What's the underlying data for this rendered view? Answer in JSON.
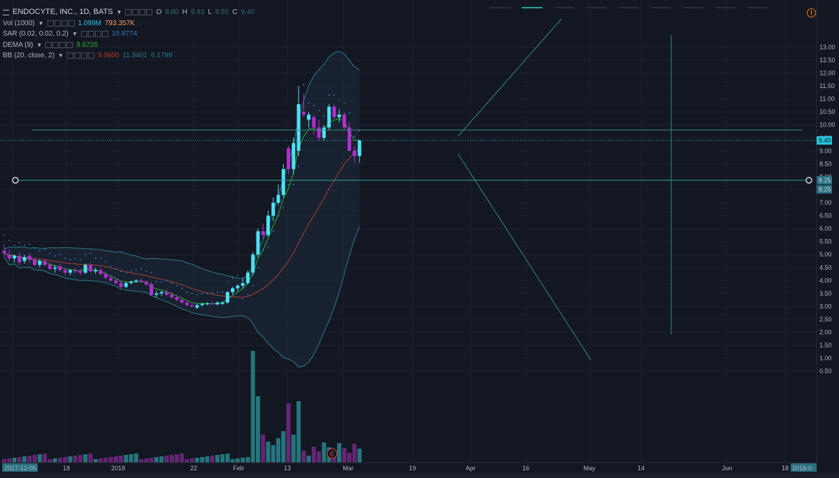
{
  "header": {
    "symbol": "ENDOCYTE, INC., 1D, BATS",
    "ohlc": {
      "o_label": "O",
      "o": "8.80",
      "h_label": "H",
      "h": "9.43",
      "l_label": "L",
      "l": "8.55",
      "c_label": "C",
      "c": "9.40"
    }
  },
  "indicators": [
    {
      "label": "Vol (1000)",
      "values": [
        {
          "v": "1.099M",
          "color": "#26c6da"
        },
        {
          "v": "793.357K",
          "color": "#ff9e6b"
        }
      ]
    },
    {
      "label": "SAR (0.02, 0.02, 0.2)",
      "values": [
        {
          "v": "10.8774",
          "color": "#2f7bbf"
        }
      ]
    },
    {
      "label": "DEMA (9)",
      "values": [
        {
          "v": "9.6726",
          "color": "#2eae34"
        }
      ]
    },
    {
      "label": "BB (20, close, 2)",
      "values": [
        {
          "v": "9.0600",
          "color": "#c0392b"
        },
        {
          "v": "11.9401",
          "color": "#2e7d8c"
        },
        {
          "v": "6.1799",
          "color": "#2e7d8c"
        }
      ]
    }
  ],
  "price_axis": {
    "ticks": [
      "13.00",
      "12.50",
      "12.00",
      "11.50",
      "11.00",
      "10.50",
      "10.00",
      "9.50",
      "9.00",
      "8.50",
      "8.00",
      "7.50",
      "7.00",
      "6.50",
      "6.00",
      "5.50",
      "5.00",
      "4.50",
      "4.00",
      "3.50",
      "3.00",
      "2.50",
      "2.00",
      "1.50",
      "1.00",
      "0.50"
    ],
    "current_price": "9.40",
    "line_label_a": "8.25",
    "line_label_b": "8.25"
  },
  "time_axis": {
    "labels": [
      "2017-12-05",
      "18",
      "2018",
      "22",
      "Feb",
      "13",
      "Mar",
      "19",
      "Apr",
      "16",
      "May",
      "14",
      "Jun",
      "18",
      "2018-0"
    ]
  },
  "chart_data": {
    "type": "candlestick",
    "y_range": [
      0.2,
      13.3
    ],
    "candles": [
      {
        "o": 5.15,
        "h": 5.4,
        "l": 4.9,
        "c": 5.05
      },
      {
        "o": 5.0,
        "h": 5.2,
        "l": 4.75,
        "c": 4.85
      },
      {
        "o": 4.85,
        "h": 5.0,
        "l": 4.7,
        "c": 4.95
      },
      {
        "o": 4.95,
        "h": 5.1,
        "l": 4.6,
        "c": 4.7
      },
      {
        "o": 4.75,
        "h": 5.0,
        "l": 4.65,
        "c": 4.9
      },
      {
        "o": 4.95,
        "h": 5.05,
        "l": 4.7,
        "c": 4.8
      },
      {
        "o": 4.8,
        "h": 4.9,
        "l": 4.55,
        "c": 4.6
      },
      {
        "o": 4.6,
        "h": 4.8,
        "l": 4.5,
        "c": 4.75
      },
      {
        "o": 4.75,
        "h": 4.85,
        "l": 4.55,
        "c": 4.6
      },
      {
        "o": 4.6,
        "h": 4.7,
        "l": 4.4,
        "c": 4.45
      },
      {
        "o": 4.45,
        "h": 4.6,
        "l": 4.3,
        "c": 4.5
      },
      {
        "o": 4.55,
        "h": 4.65,
        "l": 4.35,
        "c": 4.4
      },
      {
        "o": 4.4,
        "h": 4.5,
        "l": 4.2,
        "c": 4.3
      },
      {
        "o": 4.3,
        "h": 4.45,
        "l": 4.2,
        "c": 4.4
      },
      {
        "o": 4.4,
        "h": 4.5,
        "l": 4.25,
        "c": 4.35
      },
      {
        "o": 4.35,
        "h": 4.45,
        "l": 4.2,
        "c": 4.3
      },
      {
        "o": 4.3,
        "h": 4.65,
        "l": 4.25,
        "c": 4.6
      },
      {
        "o": 4.6,
        "h": 4.7,
        "l": 4.3,
        "c": 4.35
      },
      {
        "o": 4.35,
        "h": 4.5,
        "l": 4.25,
        "c": 4.4
      },
      {
        "o": 4.4,
        "h": 4.5,
        "l": 4.2,
        "c": 4.25
      },
      {
        "o": 4.25,
        "h": 4.35,
        "l": 4.05,
        "c": 4.1
      },
      {
        "o": 4.1,
        "h": 4.2,
        "l": 3.95,
        "c": 4.0
      },
      {
        "o": 4.0,
        "h": 4.1,
        "l": 3.85,
        "c": 3.9
      },
      {
        "o": 3.9,
        "h": 4.0,
        "l": 3.7,
        "c": 3.75
      },
      {
        "o": 3.75,
        "h": 3.95,
        "l": 3.7,
        "c": 3.9
      },
      {
        "o": 3.9,
        "h": 4.0,
        "l": 3.85,
        "c": 3.95
      },
      {
        "o": 3.95,
        "h": 4.05,
        "l": 3.9,
        "c": 4.0
      },
      {
        "o": 4.0,
        "h": 4.1,
        "l": 3.9,
        "c": 3.95
      },
      {
        "o": 3.95,
        "h": 4.0,
        "l": 3.8,
        "c": 3.85
      },
      {
        "o": 3.85,
        "h": 3.95,
        "l": 3.4,
        "c": 3.45
      },
      {
        "o": 3.45,
        "h": 3.6,
        "l": 3.35,
        "c": 3.5
      },
      {
        "o": 3.5,
        "h": 3.6,
        "l": 3.4,
        "c": 3.55
      },
      {
        "o": 3.55,
        "h": 3.65,
        "l": 3.4,
        "c": 3.45
      },
      {
        "o": 3.45,
        "h": 3.55,
        "l": 3.3,
        "c": 3.35
      },
      {
        "o": 3.35,
        "h": 3.45,
        "l": 3.2,
        "c": 3.25
      },
      {
        "o": 3.25,
        "h": 3.35,
        "l": 3.1,
        "c": 3.15
      },
      {
        "o": 3.15,
        "h": 3.2,
        "l": 3.0,
        "c": 3.05
      },
      {
        "o": 3.05,
        "h": 3.15,
        "l": 2.95,
        "c": 3.0
      },
      {
        "o": 2.95,
        "h": 3.1,
        "l": 2.9,
        "c": 3.05
      },
      {
        "o": 3.05,
        "h": 3.15,
        "l": 3.0,
        "c": 3.1
      },
      {
        "o": 3.1,
        "h": 3.15,
        "l": 3.05,
        "c": 3.12
      },
      {
        "o": 3.12,
        "h": 3.18,
        "l": 3.05,
        "c": 3.08
      },
      {
        "o": 3.08,
        "h": 3.2,
        "l": 3.05,
        "c": 3.15
      },
      {
        "o": 3.1,
        "h": 3.2,
        "l": 3.05,
        "c": 3.15
      },
      {
        "o": 3.15,
        "h": 3.6,
        "l": 3.1,
        "c": 3.55
      },
      {
        "o": 3.55,
        "h": 3.75,
        "l": 3.45,
        "c": 3.7
      },
      {
        "o": 3.7,
        "h": 3.85,
        "l": 3.6,
        "c": 3.8
      },
      {
        "o": 3.8,
        "h": 4.1,
        "l": 3.7,
        "c": 3.9
      },
      {
        "o": 3.9,
        "h": 4.4,
        "l": 3.85,
        "c": 4.3
      },
      {
        "o": 4.3,
        "h": 5.1,
        "l": 4.2,
        "c": 5.0
      },
      {
        "o": 5.0,
        "h": 6.0,
        "l": 4.9,
        "c": 5.9
      },
      {
        "o": 5.9,
        "h": 6.2,
        "l": 5.6,
        "c": 5.75
      },
      {
        "o": 5.75,
        "h": 6.7,
        "l": 5.7,
        "c": 6.5
      },
      {
        "o": 6.5,
        "h": 7.2,
        "l": 6.3,
        "c": 7.0
      },
      {
        "o": 7.0,
        "h": 7.7,
        "l": 6.9,
        "c": 7.3
      },
      {
        "o": 7.3,
        "h": 8.5,
        "l": 7.2,
        "c": 8.3
      },
      {
        "o": 9.1,
        "h": 9.2,
        "l": 8.1,
        "c": 8.3
      },
      {
        "o": 8.3,
        "h": 9.5,
        "l": 8.1,
        "c": 9.3
      },
      {
        "o": 9.0,
        "h": 11.5,
        "l": 8.8,
        "c": 10.8
      },
      {
        "o": 10.5,
        "h": 11.2,
        "l": 10.3,
        "c": 10.4
      },
      {
        "o": 10.2,
        "h": 10.5,
        "l": 9.9,
        "c": 10.4
      },
      {
        "o": 10.3,
        "h": 10.4,
        "l": 9.6,
        "c": 9.9
      },
      {
        "o": 9.9,
        "h": 10.2,
        "l": 9.4,
        "c": 9.5
      },
      {
        "o": 9.5,
        "h": 10.0,
        "l": 9.4,
        "c": 9.9
      },
      {
        "o": 9.9,
        "h": 10.8,
        "l": 9.8,
        "c": 10.7
      },
      {
        "o": 10.7,
        "h": 10.8,
        "l": 10.2,
        "c": 10.3
      },
      {
        "o": 10.3,
        "h": 10.6,
        "l": 10.1,
        "c": 10.4
      },
      {
        "o": 10.4,
        "h": 10.5,
        "l": 9.8,
        "c": 9.9
      },
      {
        "o": 9.9,
        "h": 10.1,
        "l": 9.0,
        "c": 9.0
      },
      {
        "o": 9.0,
        "h": 9.2,
        "l": 8.55,
        "c": 8.8
      },
      {
        "o": 8.8,
        "h": 9.43,
        "l": 8.55,
        "c": 9.4
      }
    ]
  }
}
